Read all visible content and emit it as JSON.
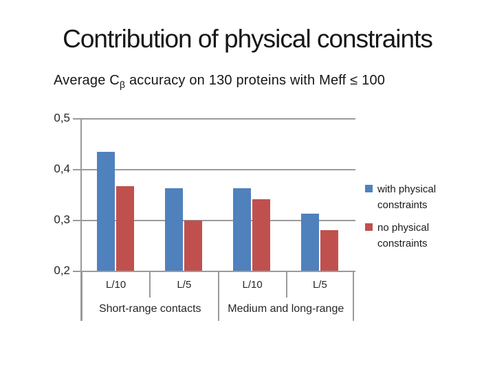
{
  "slide": {
    "title": "Contribution of physical constraints",
    "subtitle": {
      "prefix": "Average C",
      "subscript": "β",
      "suffix": " accuracy on 130 proteins with Meff ≤ 100"
    }
  },
  "chart_data": {
    "type": "bar",
    "title": "Average Cβ accuracy on 130 proteins with Meff ≤ 100",
    "y_axis": {
      "min": 0.2,
      "max": 0.5,
      "ticks": [
        {
          "value": 0.5,
          "label": "0,5"
        },
        {
          "value": 0.4,
          "label": "0,4"
        },
        {
          "value": 0.3,
          "label": "0,3"
        },
        {
          "value": 0.2,
          "label": "0,2"
        }
      ]
    },
    "categories": [
      "L/10",
      "L/5",
      "L/10",
      "L/5"
    ],
    "group_labels": [
      {
        "label": "Short-range contacts",
        "span": 2
      },
      {
        "label": "Medium and long-range",
        "span": 2
      }
    ],
    "series": [
      {
        "name": "with physical constraints",
        "color": "#4F81BD",
        "values": [
          0.435,
          0.364,
          0.364,
          0.313
        ]
      },
      {
        "name": "no physical constraints",
        "color": "#C0504D",
        "values": [
          0.367,
          0.3,
          0.342,
          0.281
        ]
      }
    ],
    "legend_position": "right",
    "gridlines": true,
    "axis_color": "#9a9a9a",
    "text_color": "#262626"
  }
}
